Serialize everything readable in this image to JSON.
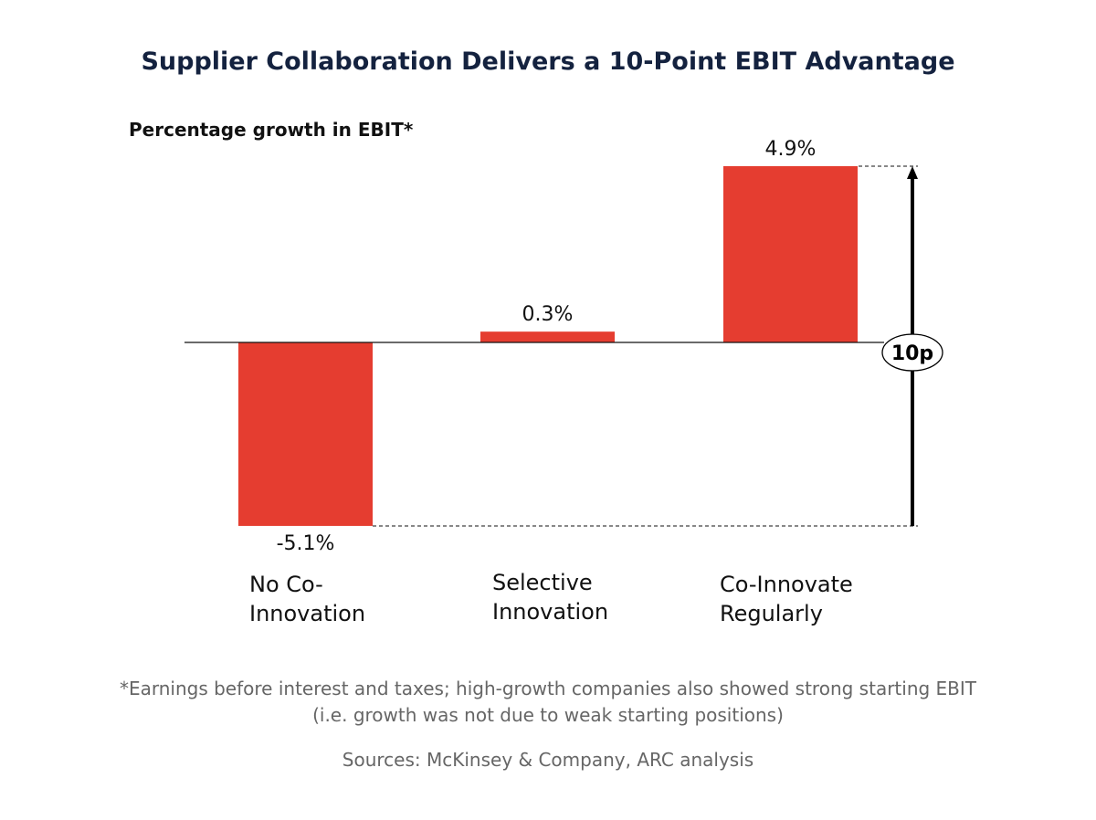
{
  "chart_data": {
    "type": "bar",
    "title": "Supplier Collaboration Delivers a 10-Point EBIT Advantage",
    "ylabel": "Percentage growth in EBIT*",
    "categories": [
      "No Co-Innovation",
      "Selective Innovation",
      "Co-Innovate Regularly"
    ],
    "category_lines": [
      [
        "No Co-",
        "Innovation"
      ],
      [
        "Selective",
        "Innovation"
      ],
      [
        "Co-Innovate",
        "Regularly"
      ]
    ],
    "values": [
      -5.1,
      0.3,
      4.9
    ],
    "data_labels": [
      "-5.1%",
      "0.3%",
      "4.9%"
    ],
    "unit": "%",
    "grid": false,
    "bar_color": "#e53d30",
    "annotation": {
      "label": "10p",
      "from": -5.1,
      "to": 4.9
    }
  },
  "footnote": {
    "line1": "*Earnings before interest and taxes; high-growth companies also showed strong starting EBIT",
    "line2": "(i.e. growth was not due to weak starting positions)",
    "sources": "Sources: McKinsey & Company, ARC analysis"
  }
}
